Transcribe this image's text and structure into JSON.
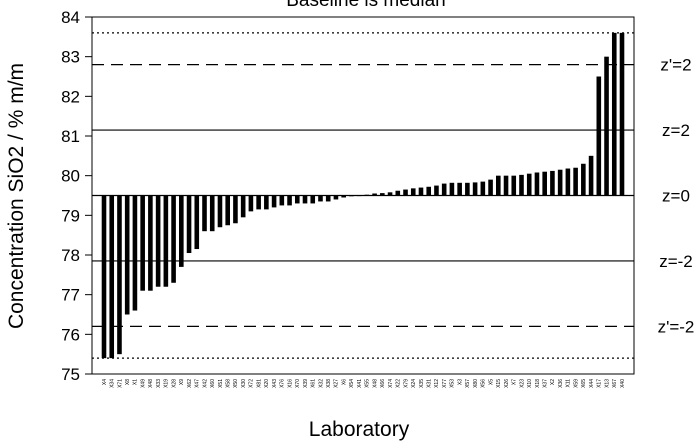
{
  "chart_data": {
    "type": "bar",
    "title": "Baseline is median",
    "xlabel": "Laboratory",
    "ylabel": "Concentration SiO2 / % m/m",
    "ylim": [
      75,
      84
    ],
    "yticks": [
      75,
      76,
      77,
      78,
      79,
      80,
      81,
      82,
      83,
      84
    ],
    "baseline": 79.5,
    "grid": false,
    "categories": [
      "X4",
      "X34",
      "X71",
      "X8",
      "X1",
      "X49",
      "X48",
      "X33",
      "X19",
      "X28",
      "X9",
      "X62",
      "X47",
      "X42",
      "X60",
      "X51",
      "X58",
      "X50",
      "X30",
      "X72",
      "X81",
      "X20",
      "X43",
      "X76",
      "X16",
      "X70",
      "X39",
      "X61",
      "X32",
      "X38",
      "X27",
      "X6",
      "X54",
      "X41",
      "X55",
      "X48",
      "X66",
      "X74",
      "X22",
      "X79",
      "X24",
      "X35",
      "X31",
      "X12",
      "X77",
      "X53",
      "X3",
      "X57",
      "X80",
      "X56",
      "X5",
      "X15",
      "X26",
      "X7",
      "X23",
      "X10",
      "X18",
      "X37",
      "X2",
      "X36",
      "X11",
      "X59",
      "X65",
      "X44",
      "X17",
      "X13",
      "X67",
      "X40"
    ],
    "values": [
      75.4,
      75.4,
      75.5,
      76.5,
      76.6,
      77.1,
      77.1,
      77.2,
      77.2,
      77.3,
      77.7,
      78.05,
      78.15,
      78.6,
      78.6,
      78.7,
      78.75,
      78.8,
      78.95,
      79.1,
      79.15,
      79.15,
      79.2,
      79.25,
      79.25,
      79.3,
      79.3,
      79.3,
      79.35,
      79.35,
      79.4,
      79.45,
      79.48,
      79.5,
      79.52,
      79.55,
      79.56,
      79.58,
      79.62,
      79.65,
      79.68,
      79.7,
      79.72,
      79.75,
      79.8,
      79.82,
      79.82,
      79.82,
      79.83,
      79.85,
      79.9,
      80.0,
      80.0,
      80.0,
      80.02,
      80.05,
      80.08,
      80.1,
      80.12,
      80.15,
      80.18,
      80.2,
      80.3,
      80.5,
      82.5,
      83.0,
      83.6,
      83.6
    ],
    "reference_lines": [
      {
        "value": 83.6,
        "label": "",
        "style": "dotted"
      },
      {
        "value": 82.8,
        "label": "z'=2",
        "style": "dashed"
      },
      {
        "value": 81.15,
        "label": "z=2",
        "style": "solid"
      },
      {
        "value": 79.5,
        "label": "z=0",
        "style": "solid"
      },
      {
        "value": 77.85,
        "label": "z=-2",
        "style": "solid"
      },
      {
        "value": 76.2,
        "label": "z'=-2",
        "style": "dashed"
      },
      {
        "value": 75.4,
        "label": "",
        "style": "dotted"
      }
    ]
  }
}
